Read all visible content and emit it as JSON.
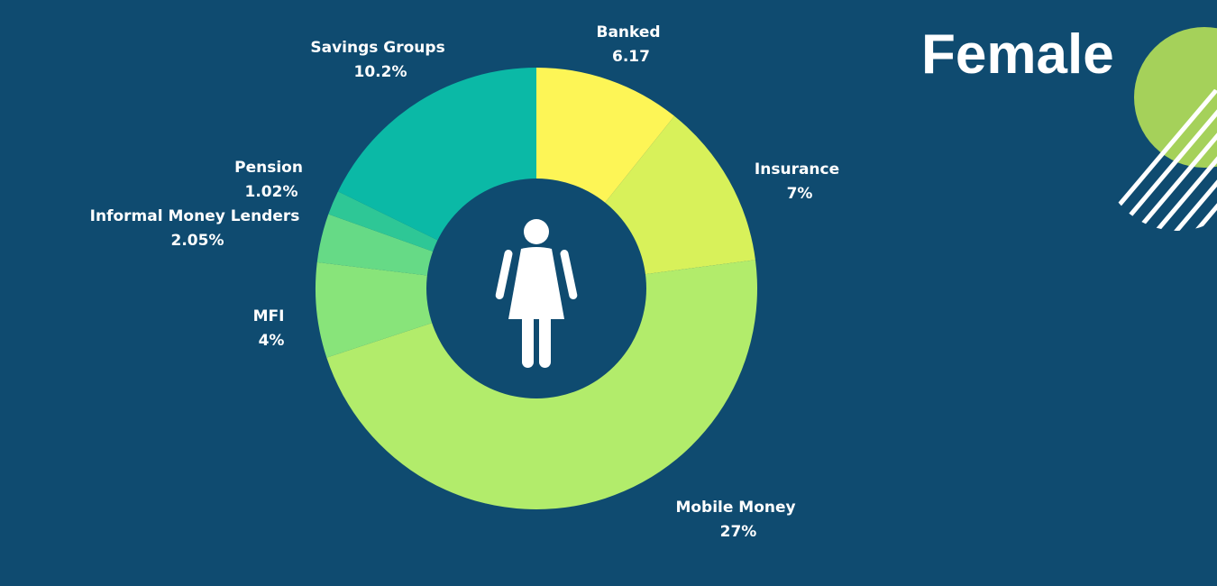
{
  "heading": "Female",
  "chart_data": {
    "type": "pie",
    "variant": "donut",
    "title": "",
    "slices": [
      {
        "label": "Banked",
        "value": 6.17,
        "display": "6.17",
        "color": "#fdf556"
      },
      {
        "label": "Insurance",
        "value": 7,
        "display": "7%",
        "color": "#d8f15a"
      },
      {
        "label": "Mobile Money",
        "value": 27,
        "display": "27%",
        "color": "#b2ec6b"
      },
      {
        "label": "MFI",
        "value": 4,
        "display": "4%",
        "color": "#88e47a"
      },
      {
        "label": "Informal Money Lenders",
        "value": 2.05,
        "display": "2.05%",
        "color": "#66da86"
      },
      {
        "label": "Pension",
        "value": 1.02,
        "display": "1.02%",
        "color": "#2ec796"
      },
      {
        "label": "Savings Groups",
        "value": 10.2,
        "display": "10.2%",
        "color": "#0bb9a6"
      }
    ],
    "center_icon": "female-person-icon"
  },
  "theme": {
    "background": "#0f4b70",
    "hole": "#0f4b70",
    "icon": "#ffffff",
    "decor_green": "#a5d15a",
    "decor_stripes": "#ffffff"
  }
}
